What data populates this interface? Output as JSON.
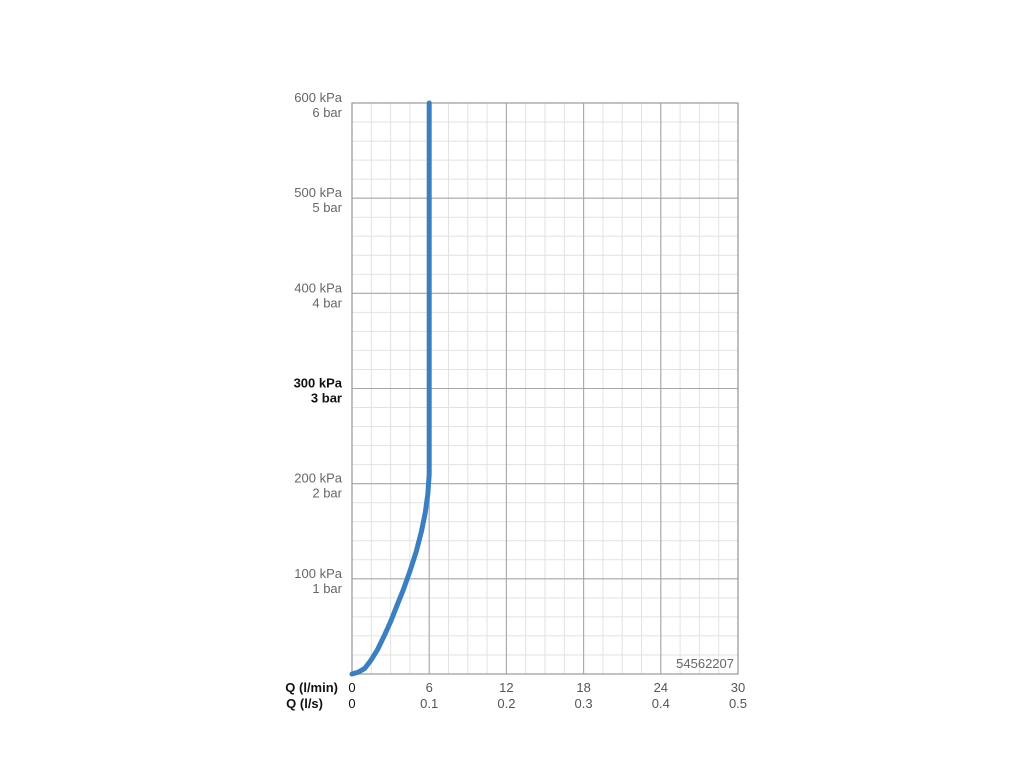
{
  "chart_data": {
    "type": "line",
    "title": "",
    "xlabel_primary": "Q (l/min)",
    "xlabel_secondary": "Q (l/s)",
    "ylabel": "",
    "xlim": [
      0,
      30
    ],
    "ylim": [
      0,
      600
    ],
    "x_ticks_primary": [
      {
        "value": 0,
        "label": "0"
      },
      {
        "value": 6,
        "label": "6"
      },
      {
        "value": 12,
        "label": "12"
      },
      {
        "value": 18,
        "label": "18"
      },
      {
        "value": 24,
        "label": "24"
      },
      {
        "value": 30,
        "label": "30"
      }
    ],
    "x_ticks_secondary": [
      {
        "value": 0,
        "label": "0"
      },
      {
        "value": 6,
        "label": "0.1"
      },
      {
        "value": 12,
        "label": "0.2"
      },
      {
        "value": 18,
        "label": "0.3"
      },
      {
        "value": 24,
        "label": "0.4"
      },
      {
        "value": 30,
        "label": "0.5"
      }
    ],
    "y_ticks": [
      {
        "value": 100,
        "label_kpa": "100 kPa",
        "label_bar": "1 bar",
        "highlight": false
      },
      {
        "value": 200,
        "label_kpa": "200 kPa",
        "label_bar": "2 bar",
        "highlight": false
      },
      {
        "value": 300,
        "label_kpa": "300 kPa",
        "label_bar": "3 bar",
        "highlight": true
      },
      {
        "value": 400,
        "label_kpa": "400 kPa",
        "label_bar": "4 bar",
        "highlight": false
      },
      {
        "value": 500,
        "label_kpa": "500 kPa",
        "label_bar": "5 bar",
        "highlight": false
      },
      {
        "value": 600,
        "label_kpa": "600 kPa",
        "label_bar": "6 bar",
        "highlight": false
      }
    ],
    "grid": true,
    "minor_grid_step_x": 1.5,
    "minor_grid_step_y": 20,
    "series": [
      {
        "color": "#3a7fc1",
        "x": [
          0,
          0.5,
          1.0,
          1.5,
          2.0,
          2.5,
          3.0,
          3.5,
          4.0,
          4.5,
          5.0,
          5.4,
          5.7,
          5.9,
          6.0,
          6.0,
          6.0
        ],
        "y": [
          0,
          2,
          6,
          15,
          26,
          40,
          55,
          72,
          89,
          108,
          129,
          150,
          170,
          190,
          210,
          400,
          600
        ]
      }
    ],
    "annotation": "54562207"
  }
}
